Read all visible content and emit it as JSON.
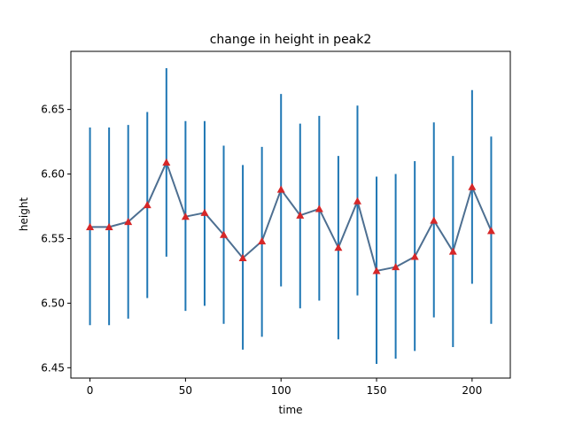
{
  "chart_data": {
    "type": "line",
    "title": "change in height in peak2",
    "xlabel": "time",
    "ylabel": "height",
    "xlim": [
      -10,
      220
    ],
    "ylim": [
      6.442,
      6.695
    ],
    "xticks": [
      0,
      50,
      100,
      150,
      200
    ],
    "xtick_labels": [
      "0",
      "50",
      "100",
      "150",
      "200"
    ],
    "yticks": [
      6.45,
      6.5,
      6.55,
      6.6,
      6.65
    ],
    "ytick_labels": [
      "6.45",
      "6.50",
      "6.55",
      "6.60",
      "6.65"
    ],
    "grid": false,
    "x": [
      0,
      10,
      20,
      30,
      40,
      50,
      60,
      70,
      80,
      90,
      100,
      110,
      120,
      130,
      140,
      150,
      160,
      170,
      180,
      190,
      200,
      210
    ],
    "y": [
      6.559,
      6.559,
      6.563,
      6.576,
      6.609,
      6.567,
      6.57,
      6.553,
      6.535,
      6.548,
      6.588,
      6.568,
      6.573,
      6.543,
      6.579,
      6.525,
      6.528,
      6.536,
      6.564,
      6.54,
      6.59,
      6.556
    ],
    "yerr_low": [
      6.483,
      6.483,
      6.488,
      6.504,
      6.536,
      6.494,
      6.498,
      6.484,
      6.464,
      6.474,
      6.513,
      6.496,
      6.502,
      6.472,
      6.506,
      6.453,
      6.457,
      6.463,
      6.489,
      6.466,
      6.515,
      6.484
    ],
    "yerr_high": [
      6.636,
      6.636,
      6.638,
      6.648,
      6.682,
      6.641,
      6.641,
      6.622,
      6.607,
      6.621,
      6.662,
      6.639,
      6.645,
      6.614,
      6.653,
      6.598,
      6.6,
      6.61,
      6.64,
      6.614,
      6.665,
      6.629
    ],
    "colors": {
      "line": "#4d6f91",
      "errorbar": "#1f77b4",
      "marker": "#d62728"
    },
    "marker": "triangle"
  }
}
